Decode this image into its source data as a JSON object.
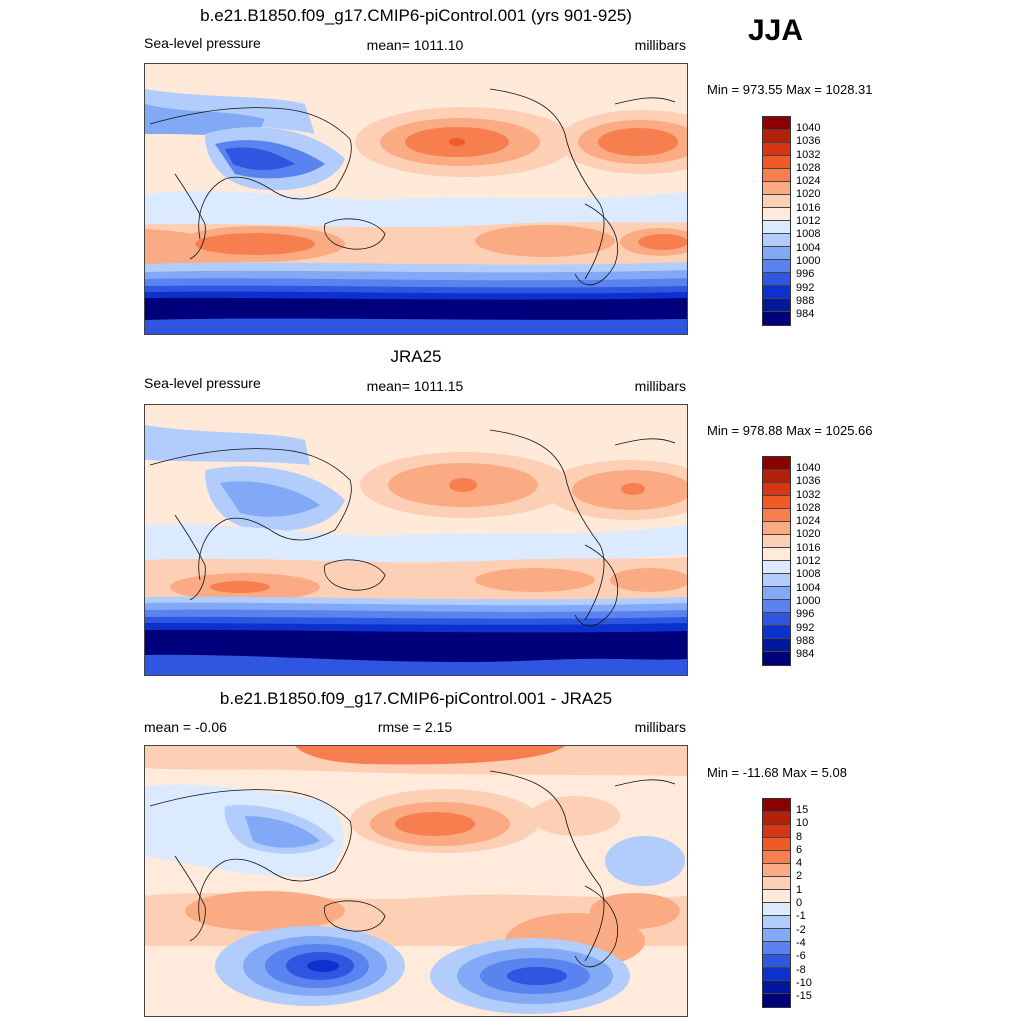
{
  "season": "JJA",
  "panels": [
    {
      "id": "model",
      "title": "b.e21.B1850.f09_g17.CMIP6-piControl.001 (yrs 901-925)",
      "left_label": "Sea-level pressure",
      "center_label": "mean= 1011.10",
      "right_label": "millibars",
      "minmax": "Min = 973.55 Max = 1028.31",
      "colorbar": {
        "labels": [
          "1040",
          "1036",
          "1032",
          "1028",
          "1024",
          "1020",
          "1016",
          "1012",
          "1008",
          "1004",
          "1000",
          "996",
          "992",
          "988",
          "984"
        ],
        "colors": [
          "#8b0000",
          "#b3200b",
          "#d93413",
          "#ef5a27",
          "#f77e4f",
          "#fbab83",
          "#fdd0b5",
          "#ffeadb",
          "#dbeaff",
          "#b2cdfb",
          "#82a9f5",
          "#5a83ef",
          "#2f56e0",
          "#0d31cc",
          "#01189d",
          "#00007a"
        ]
      },
      "regions": {
        "north_pacific_high": "1028",
        "north_atlantic_high": "1028",
        "south_indian_high": "1028",
        "south_pacific_high": "1024",
        "south_atlantic_high": "1028",
        "asian_low": "996",
        "southern_ocean_trough": "984"
      }
    },
    {
      "id": "obs",
      "title": "JRA25",
      "left_label": "Sea-level pressure",
      "center_label": "mean= 1011.15",
      "right_label": "millibars",
      "minmax": "Min = 978.88 Max = 1025.66",
      "colorbar": {
        "labels": [
          "1040",
          "1036",
          "1032",
          "1028",
          "1024",
          "1020",
          "1016",
          "1012",
          "1008",
          "1004",
          "1000",
          "996",
          "992",
          "988",
          "984"
        ],
        "colors": [
          "#8b0000",
          "#b3200b",
          "#d93413",
          "#ef5a27",
          "#f77e4f",
          "#fbab83",
          "#fdd0b5",
          "#ffeadb",
          "#dbeaff",
          "#b2cdfb",
          "#82a9f5",
          "#5a83ef",
          "#2f56e0",
          "#0d31cc",
          "#01189d",
          "#00007a"
        ]
      },
      "regions": {
        "north_pacific_high": "1024",
        "north_atlantic_high": "1024",
        "south_indian_high": "1024",
        "south_pacific_high": "1020",
        "south_atlantic_high": "1020",
        "asian_low": "1000",
        "southern_ocean_trough": "984"
      }
    },
    {
      "id": "diff",
      "title": "b.e21.B1850.f09_g17.CMIP6-piControl.001 - JRA25",
      "left_label": "mean =  -0.06",
      "center_label": "rmse =   2.15",
      "right_label": "millibars",
      "minmax": "Min = -11.68 Max =   5.08",
      "colorbar": {
        "labels": [
          "15",
          "10",
          "8",
          "6",
          "4",
          "2",
          "1",
          "0",
          "-1",
          "-2",
          "-4",
          "-6",
          "-8",
          "-10",
          "-15"
        ],
        "colors": [
          "#8b0000",
          "#b3200b",
          "#d93413",
          "#ef5a27",
          "#f77e4f",
          "#fbab83",
          "#fdd0b5",
          "#ffeadb",
          "#dbeaff",
          "#b2cdfb",
          "#82a9f5",
          "#5a83ef",
          "#2f56e0",
          "#0d31cc",
          "#01189d",
          "#00007a"
        ]
      },
      "regions": {
        "north_pacific_diff": "4",
        "arctic_diff": "2",
        "south_pacific_low_diff": "-10",
        "south_atlantic_low_diff": "-8"
      }
    }
  ],
  "chart_data": {
    "type": "heatmap",
    "season": "JJA",
    "variable": "Sea-level pressure",
    "units": "millibars",
    "maps": [
      {
        "name": "b.e21.B1850.f09_g17.CMIP6-piControl.001 (yrs 901-925)",
        "mean": 1011.1,
        "min": 973.55,
        "max": 1028.31,
        "contour_levels": [
          984,
          988,
          992,
          996,
          1000,
          1004,
          1008,
          1012,
          1016,
          1020,
          1024,
          1028,
          1032,
          1036,
          1040
        ]
      },
      {
        "name": "JRA25",
        "mean": 1011.15,
        "min": 978.88,
        "max": 1025.66,
        "contour_levels": [
          984,
          988,
          992,
          996,
          1000,
          1004,
          1008,
          1012,
          1016,
          1020,
          1024,
          1028,
          1032,
          1036,
          1040
        ]
      },
      {
        "name": "b.e21.B1850.f09_g17.CMIP6-piControl.001 - JRA25",
        "mean": -0.06,
        "rmse": 2.15,
        "min": -11.68,
        "max": 5.08,
        "contour_levels": [
          -15,
          -10,
          -8,
          -6,
          -4,
          -2,
          -1,
          0,
          1,
          2,
          4,
          6,
          8,
          10,
          15
        ]
      }
    ]
  }
}
